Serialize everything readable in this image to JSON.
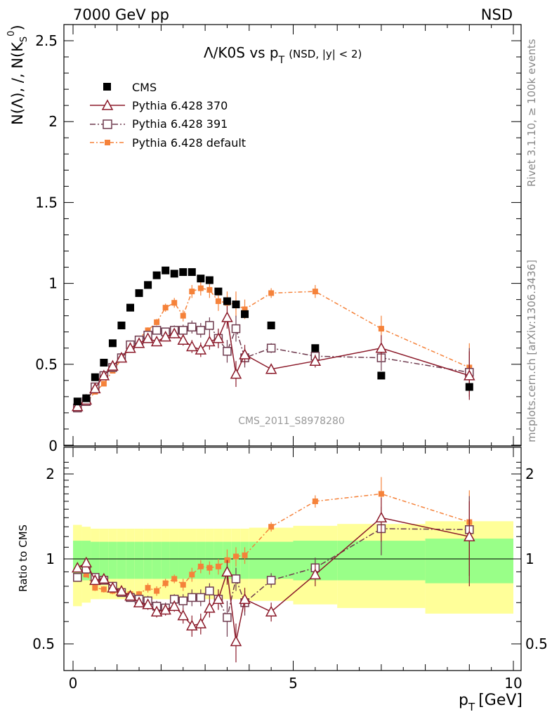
{
  "header": {
    "left": "7000 GeV pp",
    "right": "NSD"
  },
  "title": {
    "main": "Λ/K0S vs p",
    "sub": "T",
    "extra": "(NSD, |y| < 2)"
  },
  "ylabel_main": "N(Λ), /, N(K",
  "ylabel_ratio": "Ratio to CMS",
  "xlabel": "p",
  "xlabel_sub": "T",
  "xlabel_unit": "[GeV]",
  "side_rivet": "Rivet 3.1.10, ≥ 100k events",
  "side_mcplots": "mcplots.cern.ch [arXiv:1306.3436]",
  "watermark": "CMS_2011_S8978280",
  "colors": {
    "cms": "#000000",
    "p370": "#8b1a2a",
    "p391": "#6e3a4e",
    "pdefault": "#f5823a",
    "band_inner": "#99ff88",
    "band_outer": "#ffff99"
  },
  "chart_data": [
    {
      "type": "scatter",
      "panel": "main",
      "xlim": [
        -0.2,
        10
      ],
      "ylim": [
        0,
        2.6
      ],
      "yticks": [
        0.5,
        1,
        1.5,
        2,
        2.5
      ],
      "ytick_labels": [
        "0.5",
        "1",
        "1.5",
        "2",
        "2.5"
      ],
      "ytick_zero_label": "0",
      "legend_placement": "top-left",
      "series": [
        {
          "name": "CMS",
          "marker": "filled-square",
          "x": [
            0.1,
            0.3,
            0.5,
            0.7,
            0.9,
            1.1,
            1.3,
            1.5,
            1.7,
            1.9,
            2.1,
            2.3,
            2.5,
            2.7,
            2.9,
            3.1,
            3.3,
            3.5,
            3.7,
            3.9,
            4.5,
            5.5,
            7.0,
            9.0
          ],
          "y": [
            0.27,
            0.29,
            0.42,
            0.51,
            0.63,
            0.74,
            0.85,
            0.94,
            0.99,
            1.05,
            1.08,
            1.06,
            1.07,
            1.07,
            1.03,
            1.02,
            0.95,
            0.89,
            0.87,
            0.81,
            0.74,
            0.6,
            0.43,
            0.36
          ]
        },
        {
          "name": "Pythia 6.428 370",
          "marker": "open-triangle",
          "x": [
            0.1,
            0.3,
            0.5,
            0.7,
            0.9,
            1.1,
            1.3,
            1.5,
            1.7,
            1.9,
            2.1,
            2.3,
            2.5,
            2.7,
            2.9,
            3.1,
            3.3,
            3.5,
            3.7,
            3.9,
            4.5,
            5.5,
            7.0,
            9.0
          ],
          "y": [
            0.24,
            0.28,
            0.35,
            0.43,
            0.49,
            0.54,
            0.6,
            0.63,
            0.66,
            0.64,
            0.67,
            0.69,
            0.65,
            0.61,
            0.59,
            0.64,
            0.66,
            0.79,
            0.44,
            0.56,
            0.47,
            0.52,
            0.6,
            0.43
          ],
          "yerr": [
            0.005,
            0.005,
            0.005,
            0.006,
            0.008,
            0.01,
            0.012,
            0.015,
            0.018,
            0.02,
            0.025,
            0.03,
            0.035,
            0.04,
            0.045,
            0.05,
            0.06,
            0.07,
            0.08,
            0.06,
            0.03,
            0.04,
            0.08,
            0.15
          ]
        },
        {
          "name": "Pythia 6.428 391",
          "marker": "open-square",
          "x": [
            0.1,
            0.3,
            0.5,
            0.7,
            0.9,
            1.1,
            1.3,
            1.5,
            1.7,
            1.9,
            2.1,
            2.3,
            2.5,
            2.7,
            2.9,
            3.1,
            3.3,
            3.5,
            3.7,
            3.9,
            4.5,
            5.5,
            7.0,
            9.0
          ],
          "y": [
            0.23,
            0.27,
            0.36,
            0.43,
            0.48,
            0.54,
            0.62,
            0.65,
            0.68,
            0.71,
            0.7,
            0.71,
            0.71,
            0.73,
            0.71,
            0.74,
            0.66,
            0.58,
            0.72,
            0.54,
            0.6,
            0.55,
            0.54,
            0.45
          ],
          "yerr": [
            0.005,
            0.005,
            0.005,
            0.006,
            0.008,
            0.01,
            0.012,
            0.015,
            0.018,
            0.02,
            0.025,
            0.03,
            0.035,
            0.04,
            0.045,
            0.05,
            0.06,
            0.07,
            0.08,
            0.06,
            0.03,
            0.04,
            0.08,
            0.15
          ]
        },
        {
          "name": "Pythia 6.428 default",
          "marker": "small-filled-square",
          "x": [
            0.1,
            0.3,
            0.5,
            0.7,
            0.9,
            1.1,
            1.3,
            1.5,
            1.7,
            1.9,
            2.1,
            2.3,
            2.5,
            2.7,
            2.9,
            3.1,
            3.3,
            3.5,
            3.7,
            3.9,
            4.5,
            5.5,
            7.0,
            9.0
          ],
          "y": [
            0.23,
            0.26,
            0.33,
            0.38,
            0.46,
            0.53,
            0.59,
            0.66,
            0.71,
            0.76,
            0.85,
            0.88,
            0.8,
            0.95,
            0.97,
            0.96,
            0.89,
            0.88,
            0.87,
            0.84,
            0.94,
            0.95,
            0.72,
            0.48
          ],
          "yerr": [
            0.005,
            0.005,
            0.005,
            0.006,
            0.008,
            0.01,
            0.012,
            0.015,
            0.018,
            0.02,
            0.025,
            0.03,
            0.035,
            0.04,
            0.045,
            0.05,
            0.06,
            0.07,
            0.08,
            0.06,
            0.03,
            0.04,
            0.08,
            0.15
          ]
        }
      ]
    },
    {
      "type": "line",
      "panel": "ratio",
      "xlim": [
        -0.2,
        10
      ],
      "ylim": [
        0.4,
        2.3
      ],
      "log_y": true,
      "yticks": [
        0.5,
        1,
        2
      ],
      "ytick_labels": [
        "0.5",
        "1",
        "2"
      ],
      "xticks": [
        0,
        5,
        10
      ],
      "xtick_labels": [
        "0",
        "5",
        "10"
      ],
      "band_edges": [
        0,
        0.2,
        0.4,
        0.6,
        0.8,
        1.0,
        1.2,
        1.4,
        1.6,
        1.8,
        2.0,
        2.2,
        2.4,
        2.6,
        2.8,
        3.0,
        3.2,
        3.4,
        3.6,
        3.8,
        4.0,
        5.0,
        6.0,
        8.0,
        10.0
      ],
      "band_inner": [
        0.16,
        0.16,
        0.15,
        0.15,
        0.15,
        0.15,
        0.15,
        0.15,
        0.15,
        0.15,
        0.15,
        0.15,
        0.15,
        0.15,
        0.15,
        0.15,
        0.15,
        0.15,
        0.15,
        0.15,
        0.15,
        0.16,
        0.16,
        0.18
      ],
      "band_outer": [
        0.32,
        0.3,
        0.28,
        0.28,
        0.28,
        0.28,
        0.28,
        0.28,
        0.28,
        0.28,
        0.28,
        0.28,
        0.28,
        0.28,
        0.28,
        0.28,
        0.28,
        0.28,
        0.28,
        0.28,
        0.29,
        0.31,
        0.33,
        0.36
      ],
      "series": [
        {
          "name": "Pythia 6.428 370",
          "x": [
            0.1,
            0.3,
            0.5,
            0.7,
            0.9,
            1.1,
            1.3,
            1.5,
            1.7,
            1.9,
            2.1,
            2.3,
            2.5,
            2.7,
            2.9,
            3.1,
            3.3,
            3.5,
            3.7,
            3.9,
            4.5,
            5.5,
            7.0,
            9.0
          ],
          "y": [
            0.93,
            0.97,
            0.84,
            0.85,
            0.79,
            0.77,
            0.74,
            0.7,
            0.69,
            0.65,
            0.66,
            0.68,
            0.63,
            0.58,
            0.59,
            0.67,
            0.72,
            0.9,
            0.51,
            0.72,
            0.65,
            0.88,
            1.4,
            1.2
          ],
          "yerr": [
            0.02,
            0.02,
            0.02,
            0.02,
            0.02,
            0.02,
            0.02,
            0.02,
            0.03,
            0.03,
            0.03,
            0.03,
            0.04,
            0.05,
            0.05,
            0.05,
            0.06,
            0.09,
            0.08,
            0.07,
            0.05,
            0.08,
            0.25,
            0.4
          ]
        },
        {
          "name": "Pythia 6.428 391",
          "x": [
            0.1,
            0.3,
            0.5,
            0.7,
            0.9,
            1.1,
            1.3,
            1.5,
            1.7,
            1.9,
            2.1,
            2.3,
            2.5,
            2.7,
            2.9,
            3.1,
            3.3,
            3.5,
            3.7,
            3.9,
            4.5,
            5.5,
            7.0,
            9.0
          ],
          "y": [
            0.86,
            0.92,
            0.86,
            0.84,
            0.8,
            0.76,
            0.73,
            0.72,
            0.71,
            0.68,
            0.67,
            0.72,
            0.71,
            0.73,
            0.73,
            0.77,
            0.72,
            0.62,
            0.85,
            0.7,
            0.84,
            0.93,
            1.28,
            1.27
          ],
          "yerr": [
            0.02,
            0.02,
            0.02,
            0.02,
            0.02,
            0.02,
            0.02,
            0.02,
            0.03,
            0.03,
            0.03,
            0.03,
            0.04,
            0.05,
            0.05,
            0.05,
            0.06,
            0.09,
            0.08,
            0.07,
            0.05,
            0.08,
            0.25,
            0.4
          ]
        },
        {
          "name": "Pythia 6.428 default",
          "x": [
            0.1,
            0.3,
            0.5,
            0.7,
            0.9,
            1.1,
            1.3,
            1.5,
            1.7,
            1.9,
            2.1,
            2.3,
            2.5,
            2.7,
            2.9,
            3.1,
            3.3,
            3.5,
            3.7,
            3.9,
            4.5,
            5.5,
            7.0,
            9.0
          ],
          "y": [
            0.85,
            0.88,
            0.79,
            0.78,
            0.77,
            0.77,
            0.75,
            0.75,
            0.79,
            0.77,
            0.82,
            0.85,
            0.81,
            0.88,
            0.94,
            0.93,
            0.94,
            0.99,
            1.02,
            1.03,
            1.3,
            1.6,
            1.7,
            1.35
          ],
          "yerr": [
            0.02,
            0.02,
            0.02,
            0.02,
            0.02,
            0.02,
            0.02,
            0.02,
            0.03,
            0.03,
            0.03,
            0.03,
            0.04,
            0.05,
            0.05,
            0.05,
            0.06,
            0.09,
            0.08,
            0.07,
            0.05,
            0.08,
            0.25,
            0.4
          ]
        }
      ]
    }
  ]
}
